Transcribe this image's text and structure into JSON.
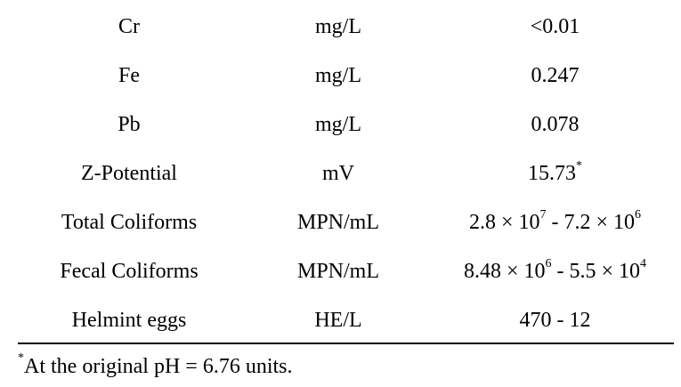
{
  "rows": [
    {
      "parameter": "Cr",
      "unit": "mg/L",
      "value_parts": [
        "<0.01"
      ]
    },
    {
      "parameter": "Fe",
      "unit": "mg/L",
      "value_parts": [
        "0.247"
      ]
    },
    {
      "parameter": "Pb",
      "unit": "mg/L",
      "value_parts": [
        "0.078"
      ]
    },
    {
      "parameter": "Z-Potential",
      "unit": "mV",
      "value_parts": [
        "15.73"
      ],
      "value_marker": "*"
    },
    {
      "parameter": "Total Coliforms",
      "unit": "MPN/mL",
      "value_parts": [
        "2.8 × 10",
        "7",
        " - 7.2 × 10",
        "6"
      ]
    },
    {
      "parameter": "Fecal Coliforms",
      "unit": "MPN/mL",
      "value_parts": [
        "8.48 × 10",
        "6",
        " - 5.5 × 10",
        "4"
      ]
    },
    {
      "parameter": "Helmint eggs",
      "unit": "HE/L",
      "value_parts": [
        "470 - 12"
      ]
    }
  ],
  "footnote": {
    "marker": "*",
    "text": "At the original pH = 6.76 units."
  }
}
